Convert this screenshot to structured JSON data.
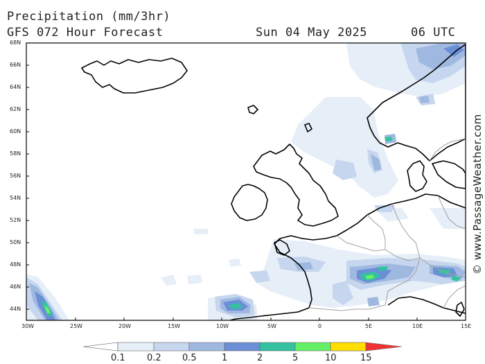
{
  "header": {
    "title": "Precipitation (mm/3hr)",
    "subtitle": "GFS 072 Hour Forecast",
    "valid_date": "Sun 04 May 2025",
    "valid_time": "06 UTC"
  },
  "credit": "© www.PassageWeather.com",
  "axes": {
    "lat_labels": [
      "68N",
      "66N",
      "64N",
      "62N",
      "60N",
      "58N",
      "56N",
      "54N",
      "52N",
      "50N",
      "48N",
      "46N",
      "44N"
    ],
    "lon_labels": [
      "30W",
      "25W",
      "20W",
      "15W",
      "10W",
      "5W",
      "0",
      "5E",
      "10E",
      "15E"
    ]
  },
  "legend": {
    "labels": [
      "0.1",
      "0.2",
      "0.5",
      "1",
      "2",
      "5",
      "10",
      "15"
    ],
    "colors": [
      "#ffffff",
      "#e6eef8",
      "#c6d6ee",
      "#9fb8e0",
      "#6b8fd6",
      "#33c1a0",
      "#66f066",
      "#ffdd00",
      "#ff9a00",
      "#ee3333"
    ]
  },
  "colors": {
    "coast": "#000000",
    "border": "#a0a0a0",
    "land": "#ffffff"
  }
}
